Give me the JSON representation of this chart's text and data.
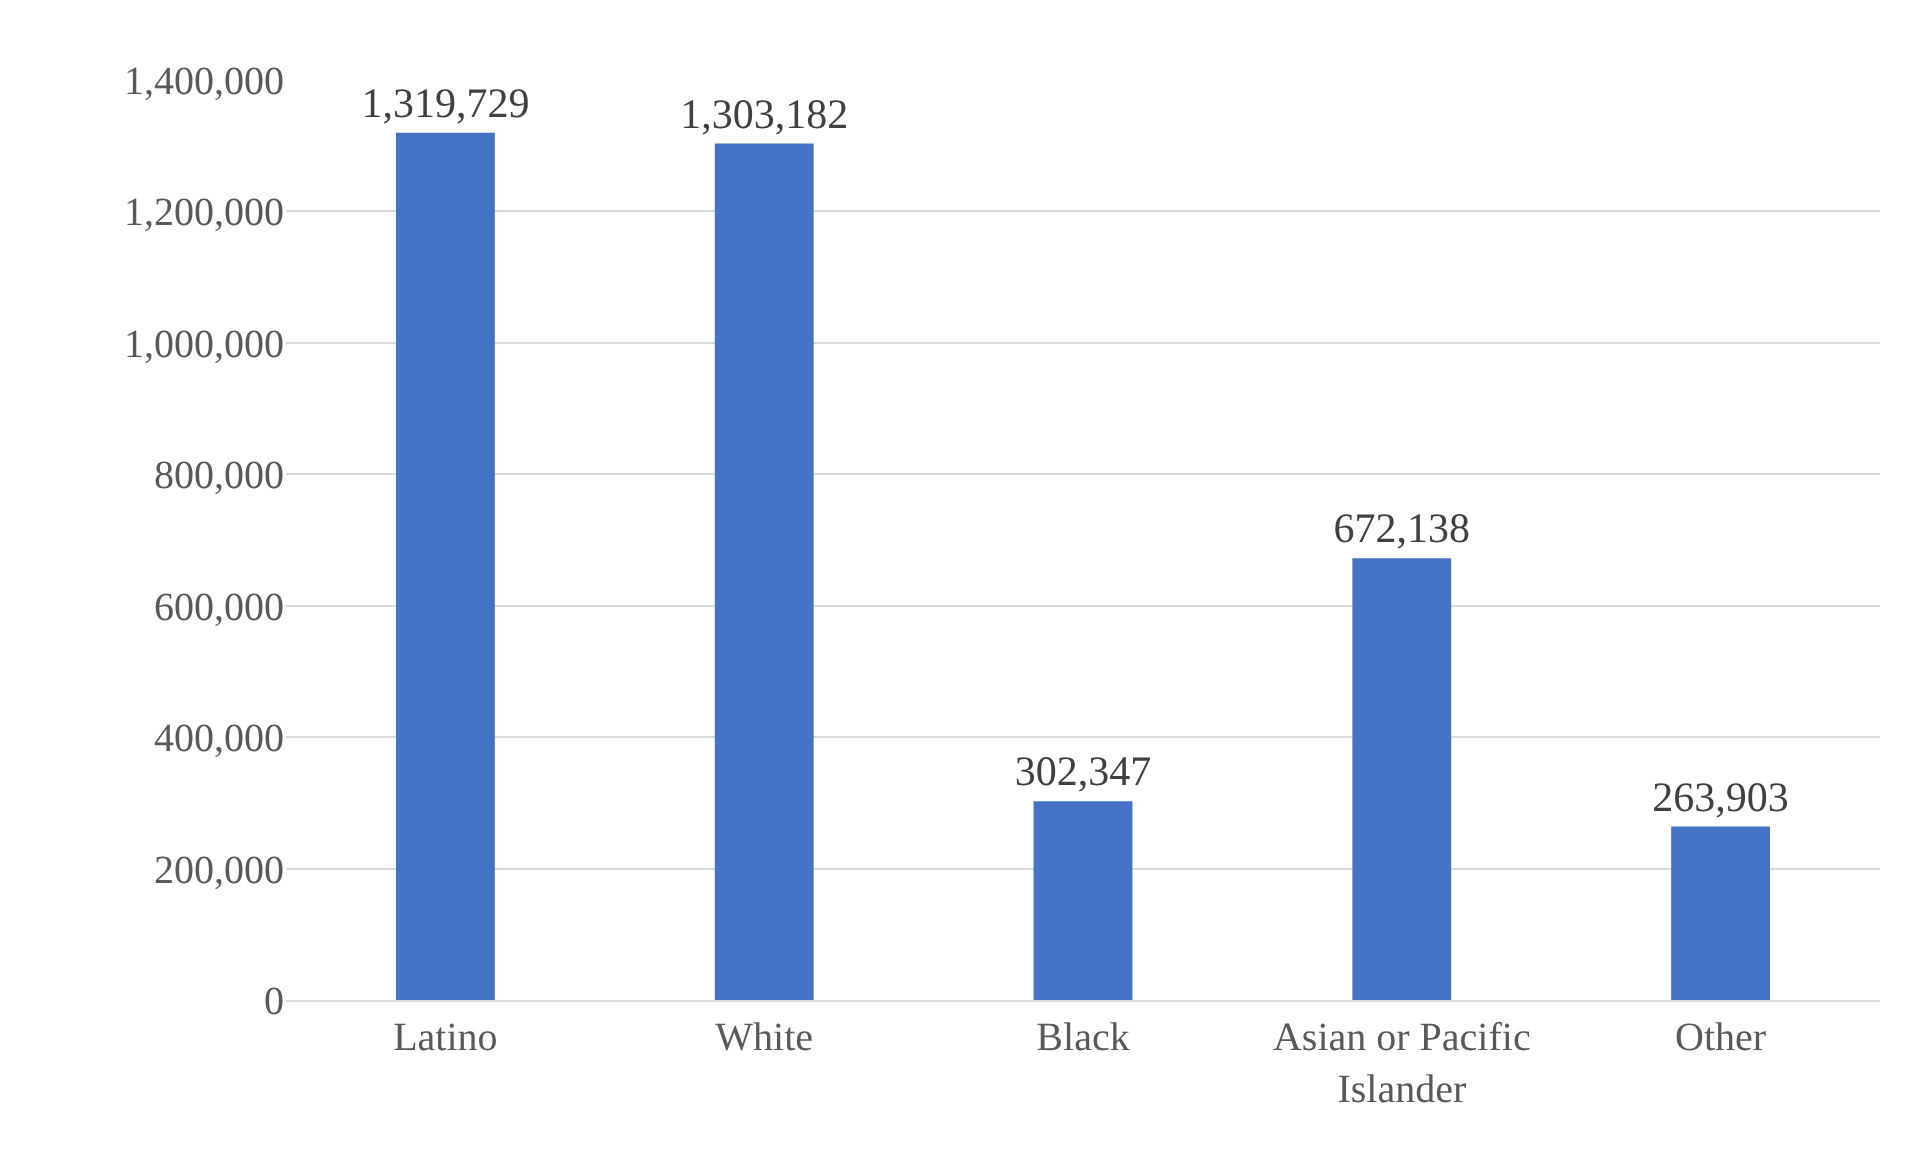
{
  "chart_data": {
    "type": "bar",
    "categories": [
      "Latino",
      "White",
      "Black",
      "Asian or Pacific Islander",
      "Other"
    ],
    "values": [
      1319729,
      1303182,
      302347,
      672138,
      263903
    ],
    "color": "#4472c4",
    "ylim": [
      0,
      1400000
    ],
    "yticks": [
      {
        "value": 0,
        "label": "0"
      },
      {
        "value": 200000,
        "label": "200,000"
      },
      {
        "value": 400000,
        "label": "400,000"
      },
      {
        "value": 600000,
        "label": "600,000"
      },
      {
        "value": 800000,
        "label": "800,000"
      },
      {
        "value": 1000000,
        "label": "1,000,000"
      },
      {
        "value": 1200000,
        "label": "1,200,000"
      },
      {
        "value": 1400000,
        "label": "1,400,000"
      }
    ],
    "grid": "y",
    "value_labels": [
      "1,319,729",
      "1,303,182",
      "302,347",
      "672,138",
      "263,903"
    ]
  }
}
